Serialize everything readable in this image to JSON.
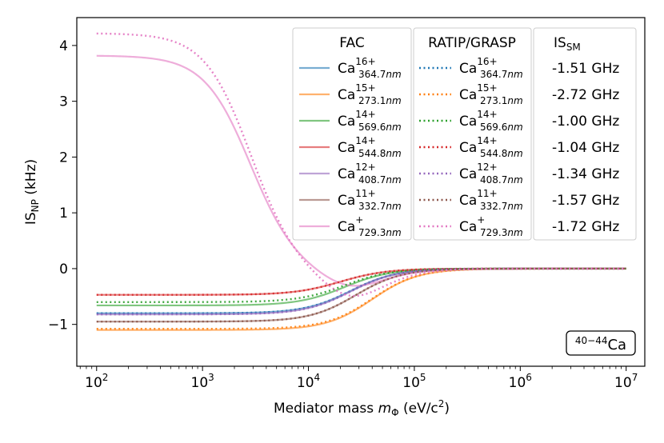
{
  "chart_data": {
    "type": "line",
    "title": "",
    "xlabel": "Mediator mass",
    "xlabel_symbol": "m",
    "xlabel_symbol_sub": "Φ",
    "xlabel_units": "(eV/c",
    "xlabel_units_sup": "2",
    "xlabel_units_close": ")",
    "ylabel": "IS",
    "ylabel_sub": "NP",
    "ylabel_units": "(kHz)",
    "xscale": "log",
    "xlim": [
      65,
      15000000
    ],
    "ylim": [
      -1.75,
      4.5
    ],
    "x_ticks": [
      {
        "value": 100,
        "base": "10",
        "exp": "2"
      },
      {
        "value": 1000,
        "base": "10",
        "exp": "3"
      },
      {
        "value": 10000,
        "base": "10",
        "exp": "4"
      },
      {
        "value": 100000,
        "base": "10",
        "exp": "5"
      },
      {
        "value": 1000000,
        "base": "10",
        "exp": "6"
      },
      {
        "value": 10000000,
        "base": "10",
        "exp": "7"
      }
    ],
    "y_ticks": [
      {
        "value": -1,
        "label": "−1"
      },
      {
        "value": 0,
        "label": "0"
      },
      {
        "value": 1,
        "label": "1"
      },
      {
        "value": 2,
        "label": "2"
      },
      {
        "value": 3,
        "label": "3"
      },
      {
        "value": 4,
        "label": "4"
      }
    ],
    "x_range": [
      100,
      10000000
    ],
    "legend": {
      "placement": "top-right",
      "headers": [
        "FAC",
        "RATIP/GRASP",
        "IS"
      ],
      "header_is_sub": "SM"
    },
    "series": [
      {
        "ion": "Ca",
        "charge": "16+",
        "line": "364.7",
        "unit": "nm",
        "color": "#1f77b4",
        "is_sm": "-1.51 GHz",
        "fac": {
          "kind": "sigmoid",
          "a": -0.8,
          "k": 25000
        },
        "grasp": {
          "kind": "sigmoid",
          "a": -0.8,
          "k": 25000
        }
      },
      {
        "ion": "Ca",
        "charge": "15+",
        "line": "273.1",
        "unit": "nm",
        "color": "#ff7f0e",
        "is_sm": "-2.72 GHz",
        "fac": {
          "kind": "sigmoid",
          "a": -1.1,
          "k": 40000
        },
        "grasp": {
          "kind": "sigmoid",
          "a": -1.08,
          "k": 40000
        }
      },
      {
        "ion": "Ca",
        "charge": "14+",
        "line": "569.6",
        "unit": "nm",
        "color": "#2ca02c",
        "is_sm": "-1.00 GHz",
        "fac": {
          "kind": "sigmoid",
          "a": -0.66,
          "k": 22000
        },
        "grasp": {
          "kind": "sigmoid",
          "a": -0.6,
          "k": 22000
        }
      },
      {
        "ion": "Ca",
        "charge": "14+",
        "line": "544.8",
        "unit": "nm",
        "color": "#d62728",
        "is_sm": "-1.04 GHz",
        "fac": {
          "kind": "sigmoid",
          "a": -0.47,
          "k": 20000
        },
        "grasp": {
          "kind": "sigmoid",
          "a": -0.47,
          "k": 20000
        }
      },
      {
        "ion": "Ca",
        "charge": "12+",
        "line": "408.7",
        "unit": "nm",
        "color": "#9467bd",
        "is_sm": "-1.34 GHz",
        "fac": {
          "kind": "sigmoid",
          "a": -0.82,
          "k": 25000
        },
        "grasp": {
          "kind": "sigmoid",
          "a": -0.82,
          "k": 25000
        }
      },
      {
        "ion": "Ca",
        "charge": "11+",
        "line": "332.7",
        "unit": "nm",
        "color": "#8c564b",
        "is_sm": "-1.57 GHz",
        "fac": {
          "kind": "sigmoid",
          "a": -0.95,
          "k": 28000
        },
        "grasp": {
          "kind": "sigmoid",
          "a": -0.95,
          "k": 28000
        }
      },
      {
        "ion": "Ca",
        "charge": "+",
        "line": "729.3",
        "unit": "nm",
        "color": "#e377c2",
        "is_sm": "-1.72 GHz",
        "fac": {
          "kind": "dip",
          "a": 3.82,
          "k1": 2800,
          "b": -1.4,
          "k2": 25000
        },
        "grasp": {
          "kind": "dip",
          "a": 4.22,
          "k1": 2800,
          "b": -2.15,
          "k2": 25000
        }
      }
    ],
    "annotation": {
      "mass_range": "40−44",
      "element": "Ca",
      "placement": "bottom-right"
    }
  }
}
